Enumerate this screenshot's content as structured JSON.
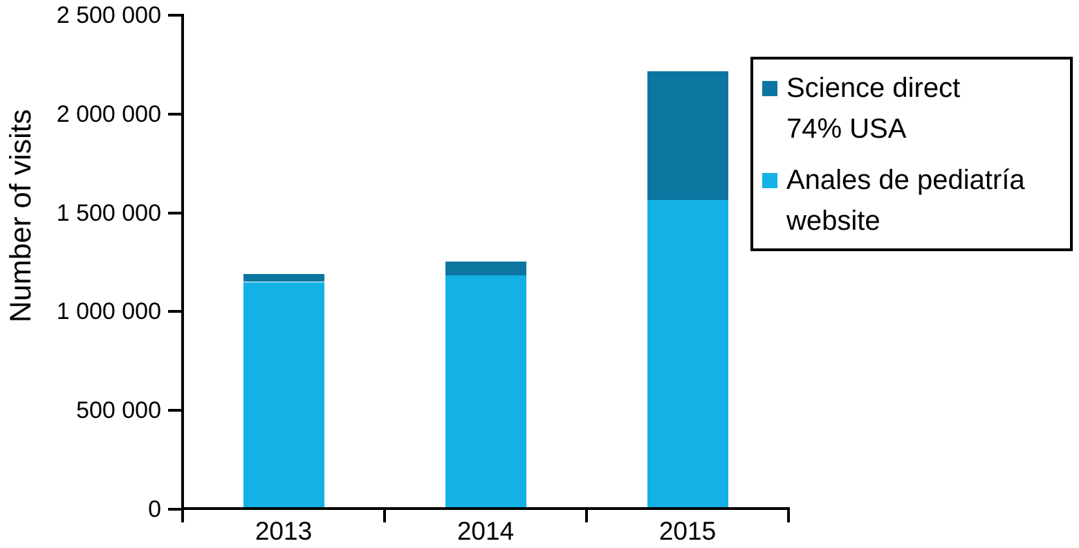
{
  "chart_data": {
    "type": "bar",
    "stacked": true,
    "title": "",
    "xlabel": "",
    "ylabel": "Number of visits",
    "categories": [
      "2013",
      "2014",
      "2015"
    ],
    "series": [
      {
        "name": "Anales de pediatría website",
        "color": "#14b1e7",
        "values": [
          1150000,
          1185000,
          1565000
        ]
      },
      {
        "name": "Science direct 74% USA",
        "color": "#0d76a0",
        "values": [
          40000,
          70000,
          650000
        ]
      }
    ],
    "ylim": [
      0,
      2500000
    ],
    "ytick_step": 500000,
    "ytick_labels": [
      "0",
      "500 000",
      "1 000 000",
      "1 500 000",
      "2 000 000",
      "2 500 000"
    ],
    "grid": false,
    "legend": {
      "position": "top-right",
      "items": [
        {
          "color": "#0d76a0",
          "lines": [
            "Science direct",
            "74% USA"
          ]
        },
        {
          "color": "#14b1e7",
          "lines": [
            "Anales de pediatría",
            "website"
          ]
        }
      ]
    }
  }
}
